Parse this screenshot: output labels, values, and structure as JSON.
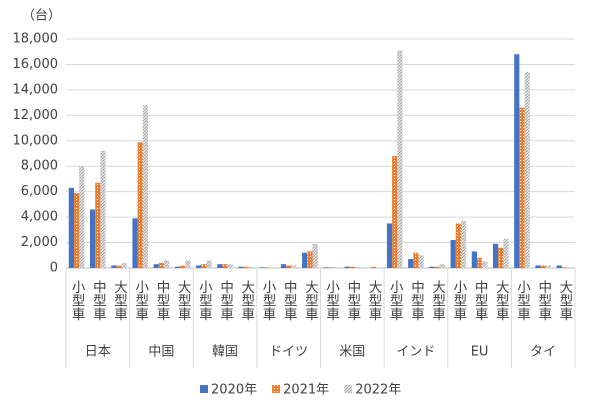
{
  "chart_data": {
    "type": "bar",
    "y_label": "（台）",
    "categories": [
      "小型車",
      "中型車",
      "大型車",
      "小型車",
      "中型車",
      "大型車",
      "小型車",
      "中型車",
      "大型車",
      "小型車",
      "中型車",
      "大型車",
      "小型車",
      "中型車",
      "大型車",
      "小型車",
      "中型車",
      "大型車",
      "小型車",
      "中型車",
      "大型車",
      "小型車",
      "中型車",
      "大型車"
    ],
    "groups": [
      "日本",
      "中国",
      "韓国",
      "ドイツ",
      "米国",
      "インド",
      "EU",
      "タイ"
    ],
    "series": [
      {
        "name": "2020年",
        "color": "#4472c4",
        "pattern": "solid",
        "values": [
          6300,
          4600,
          200,
          3900,
          300,
          100,
          200,
          300,
          100,
          50,
          300,
          1200,
          50,
          100,
          0,
          3500,
          700,
          100,
          2200,
          1300,
          1900,
          16800,
          200,
          200
        ]
      },
      {
        "name": "2021年",
        "color": "#ed7d31",
        "pattern": "dots",
        "values": [
          5900,
          6700,
          200,
          9900,
          400,
          200,
          300,
          300,
          100,
          50,
          200,
          1300,
          50,
          100,
          100,
          8800,
          1200,
          100,
          3500,
          800,
          1600,
          12600,
          200,
          50
        ]
      },
      {
        "name": "2022年",
        "color": "#a5a5a5",
        "pattern": "hatch",
        "values": [
          8000,
          9200,
          400,
          12800,
          600,
          600,
          600,
          300,
          100,
          50,
          200,
          1900,
          50,
          100,
          0,
          17100,
          1000,
          300,
          3700,
          500,
          2300,
          15400,
          200,
          50
        ]
      }
    ],
    "ylim": [
      0,
      18000
    ],
    "yticks": [
      0,
      {
        "value": 2000,
        "label": "2,000"
      },
      {
        "value": 4000,
        "label": "4,000"
      },
      {
        "value": 6000,
        "label": "6,000"
      },
      {
        "value": 8000,
        "label": "8,000"
      },
      {
        "value": 10000,
        "label": "10,000"
      },
      {
        "value": 12000,
        "label": "12,000"
      },
      {
        "value": 14000,
        "label": "14,000"
      },
      {
        "value": 16000,
        "label": "16,000"
      },
      {
        "value": 18000,
        "label": "18,000"
      }
    ],
    "grid": true,
    "legend": "bottom"
  }
}
